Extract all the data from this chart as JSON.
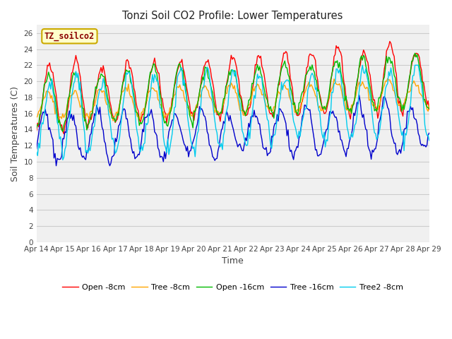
{
  "title": "Tonzi Soil CO2 Profile: Lower Temperatures",
  "xlabel": "Time",
  "ylabel": "Soil Temperatures (C)",
  "ylim": [
    0,
    27
  ],
  "yticks": [
    0,
    2,
    4,
    6,
    8,
    10,
    12,
    14,
    16,
    18,
    20,
    22,
    24,
    26
  ],
  "xtick_labels": [
    "Apr 14",
    "Apr 15",
    "Apr 16",
    "Apr 17",
    "Apr 18",
    "Apr 19",
    "Apr 20",
    "Apr 21",
    "Apr 22",
    "Apr 23",
    "Apr 24",
    "Apr 25",
    "Apr 26",
    "Apr 27",
    "Apr 28",
    "Apr 29"
  ],
  "legend_label": "TZ_soilco2",
  "legend_box_facecolor": "#ffffcc",
  "legend_box_edgecolor": "#ccaa00",
  "legend_text_color": "#8b0000",
  "series_colors": [
    "#ff0000",
    "#ffa500",
    "#00bb00",
    "#0000cc",
    "#00ccee"
  ],
  "series_names": [
    "Open -8cm",
    "Tree -8cm",
    "Open -16cm",
    "Tree -16cm",
    "Tree2 -8cm"
  ],
  "plot_bg_color": "#f0f0f0",
  "fig_bg_color": "#ffffff",
  "grid_color": "#cccccc",
  "days": 15
}
